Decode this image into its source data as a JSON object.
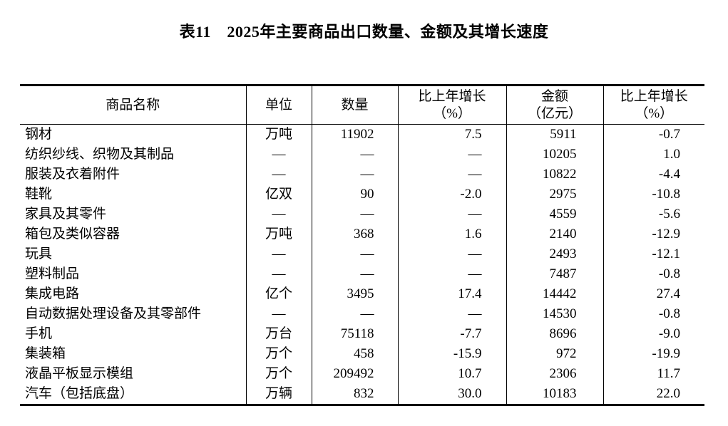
{
  "title": "表11　2025年主要商品出口数量、金额及其增长速度",
  "table": {
    "headers": {
      "name": "商品名称",
      "unit": "单位",
      "qty": "数量",
      "qty_growth_line1": "比上年增长",
      "qty_growth_line2": "（%）",
      "amount_line1": "金额",
      "amount_line2": "（亿元）",
      "amount_growth_line1": "比上年增长",
      "amount_growth_line2": "（%）"
    },
    "rows": [
      {
        "name": "钢材",
        "unit": "万吨",
        "qty": "11902",
        "qty_growth": "7.5",
        "amount": "5911",
        "amount_growth": "-0.7"
      },
      {
        "name": "纺织纱线、织物及其制品",
        "unit": "—",
        "qty": "—",
        "qty_growth": "—",
        "amount": "10205",
        "amount_growth": "1.0"
      },
      {
        "name": "服装及衣着附件",
        "unit": "—",
        "qty": "—",
        "qty_growth": "—",
        "amount": "10822",
        "amount_growth": "-4.4"
      },
      {
        "name": "鞋靴",
        "unit": "亿双",
        "qty": "90",
        "qty_growth": "-2.0",
        "amount": "2975",
        "amount_growth": "-10.8"
      },
      {
        "name": "家具及其零件",
        "unit": "—",
        "qty": "—",
        "qty_growth": "—",
        "amount": "4559",
        "amount_growth": "-5.6"
      },
      {
        "name": "箱包及类似容器",
        "unit": "万吨",
        "qty": "368",
        "qty_growth": "1.6",
        "amount": "2140",
        "amount_growth": "-12.9"
      },
      {
        "name": "玩具",
        "unit": "—",
        "qty": "—",
        "qty_growth": "—",
        "amount": "2493",
        "amount_growth": "-12.1"
      },
      {
        "name": "塑料制品",
        "unit": "—",
        "qty": "—",
        "qty_growth": "—",
        "amount": "7487",
        "amount_growth": "-0.8"
      },
      {
        "name": "集成电路",
        "unit": "亿个",
        "qty": "3495",
        "qty_growth": "17.4",
        "amount": "14442",
        "amount_growth": "27.4"
      },
      {
        "name": "自动数据处理设备及其零部件",
        "unit": "—",
        "qty": "—",
        "qty_growth": "—",
        "amount": "14530",
        "amount_growth": "-0.8"
      },
      {
        "name": "手机",
        "unit": "万台",
        "qty": "75118",
        "qty_growth": "-7.7",
        "amount": "8696",
        "amount_growth": "-9.0"
      },
      {
        "name": "集装箱",
        "unit": "万个",
        "qty": "458",
        "qty_growth": "-15.9",
        "amount": "972",
        "amount_growth": "-19.9"
      },
      {
        "name": "液晶平板显示模组",
        "unit": "万个",
        "qty": "209492",
        "qty_growth": "10.7",
        "amount": "2306",
        "amount_growth": "11.7"
      },
      {
        "name": "汽车（包括底盘）",
        "unit": "万辆",
        "qty": "832",
        "qty_growth": "30.0",
        "amount": "10183",
        "amount_growth": "22.0"
      }
    ],
    "text_color": "#000000",
    "border_color": "#000000",
    "background_color": "#ffffff"
  }
}
